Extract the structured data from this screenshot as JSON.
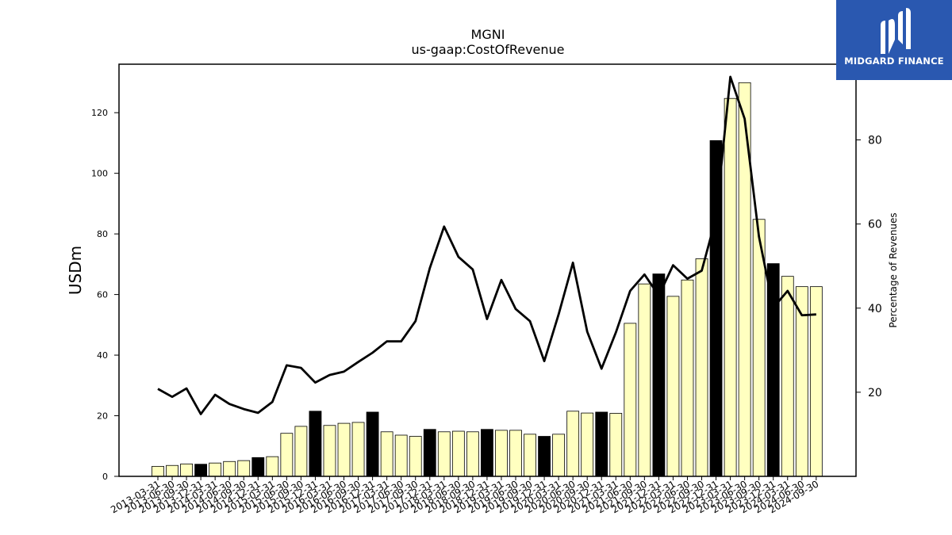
{
  "brand": {
    "name": "MIDGARD FINANCE",
    "bg_color": "#2a58b0",
    "icon": "midgard-logo-icon"
  },
  "chart_data": {
    "type": "bar",
    "title": "MGNI",
    "subtitle": "us-gaap:CostOfRevenue",
    "ylabel": "USDm",
    "y2label": "Percentage of Revenues",
    "ylim": [
      0,
      136
    ],
    "y2lim": [
      0,
      98
    ],
    "yticks": [
      0,
      20,
      40,
      60,
      80,
      100,
      120
    ],
    "y2ticks": [
      20,
      40,
      60,
      80
    ],
    "grid": false,
    "bar_colors": {
      "quarter": "#ffffc0",
      "year_end": "#000000"
    },
    "categories": [
      "2013-03-31",
      "2013-06-30",
      "2013-09-30",
      "2013-12-31",
      "2014-03-31",
      "2014-06-30",
      "2014-09-30",
      "2014-12-31",
      "2015-03-31",
      "2015-06-30",
      "2015-09-30",
      "2015-12-31",
      "2016-03-31",
      "2016-06-30",
      "2016-09-30",
      "2016-12-31",
      "2017-03-31",
      "2017-06-30",
      "2017-09-30",
      "2017-12-31",
      "2018-03-31",
      "2018-06-30",
      "2018-09-30",
      "2018-12-31",
      "2019-03-31",
      "2019-06-30",
      "2019-09-30",
      "2019-12-31",
      "2020-03-31",
      "2020-06-30",
      "2020-09-30",
      "2020-12-31",
      "2021-03-31",
      "2021-06-30",
      "2021-09-30",
      "2021-12-31",
      "2022-03-31",
      "2022-06-30",
      "2022-09-30",
      "2022-12-31",
      "2023-03-31",
      "2023-06-30",
      "2023-09-30",
      "2023-12-31",
      "2024-03-31",
      "2024-06-30",
      "2024-09-30"
    ],
    "series": [
      {
        "type": "bar",
        "axis": "left",
        "values": [
          3.3,
          3.6,
          4.1,
          4.0,
          4.4,
          4.9,
          5.2,
          6.2,
          6.5,
          14.2,
          16.5,
          21.5,
          16.8,
          17.5,
          17.8,
          21.2,
          14.7,
          13.6,
          13.2,
          15.5,
          14.7,
          14.9,
          14.7,
          15.5,
          15.2,
          15.2,
          13.9,
          13.2,
          13.9,
          21.5,
          20.9,
          21.2,
          20.8,
          50.5,
          63.5,
          66.8,
          59.4,
          64.8,
          71.8,
          110.8,
          124.7,
          129.9,
          84.8,
          70.2,
          66.0,
          62.6,
          62.6
        ],
        "highlight": [
          false,
          false,
          false,
          true,
          false,
          false,
          false,
          true,
          false,
          false,
          false,
          true,
          false,
          false,
          false,
          true,
          false,
          false,
          false,
          true,
          false,
          false,
          false,
          true,
          false,
          false,
          false,
          true,
          false,
          false,
          false,
          true,
          false,
          false,
          false,
          true,
          false,
          false,
          false,
          true,
          false,
          false,
          false,
          true,
          false,
          false,
          false
        ]
      },
      {
        "type": "line",
        "axis": "right",
        "color": "#000000",
        "values": [
          20.8,
          18.9,
          20.9,
          14.8,
          19.4,
          17.2,
          16.0,
          15.1,
          17.7,
          26.4,
          25.8,
          22.3,
          24.1,
          24.9,
          27.2,
          29.4,
          32.1,
          32.1,
          36.9,
          49.5,
          59.4,
          52.2,
          49.2,
          37.4,
          46.7,
          39.8,
          36.9,
          27.4,
          38.5,
          50.8,
          34.4,
          25.6,
          34.2,
          44.1,
          48.0,
          43.0,
          50.2,
          47.0,
          48.9,
          61.5,
          95.0,
          85.0,
          57.0,
          40.1,
          44.1,
          38.3,
          38.5
        ]
      }
    ]
  }
}
